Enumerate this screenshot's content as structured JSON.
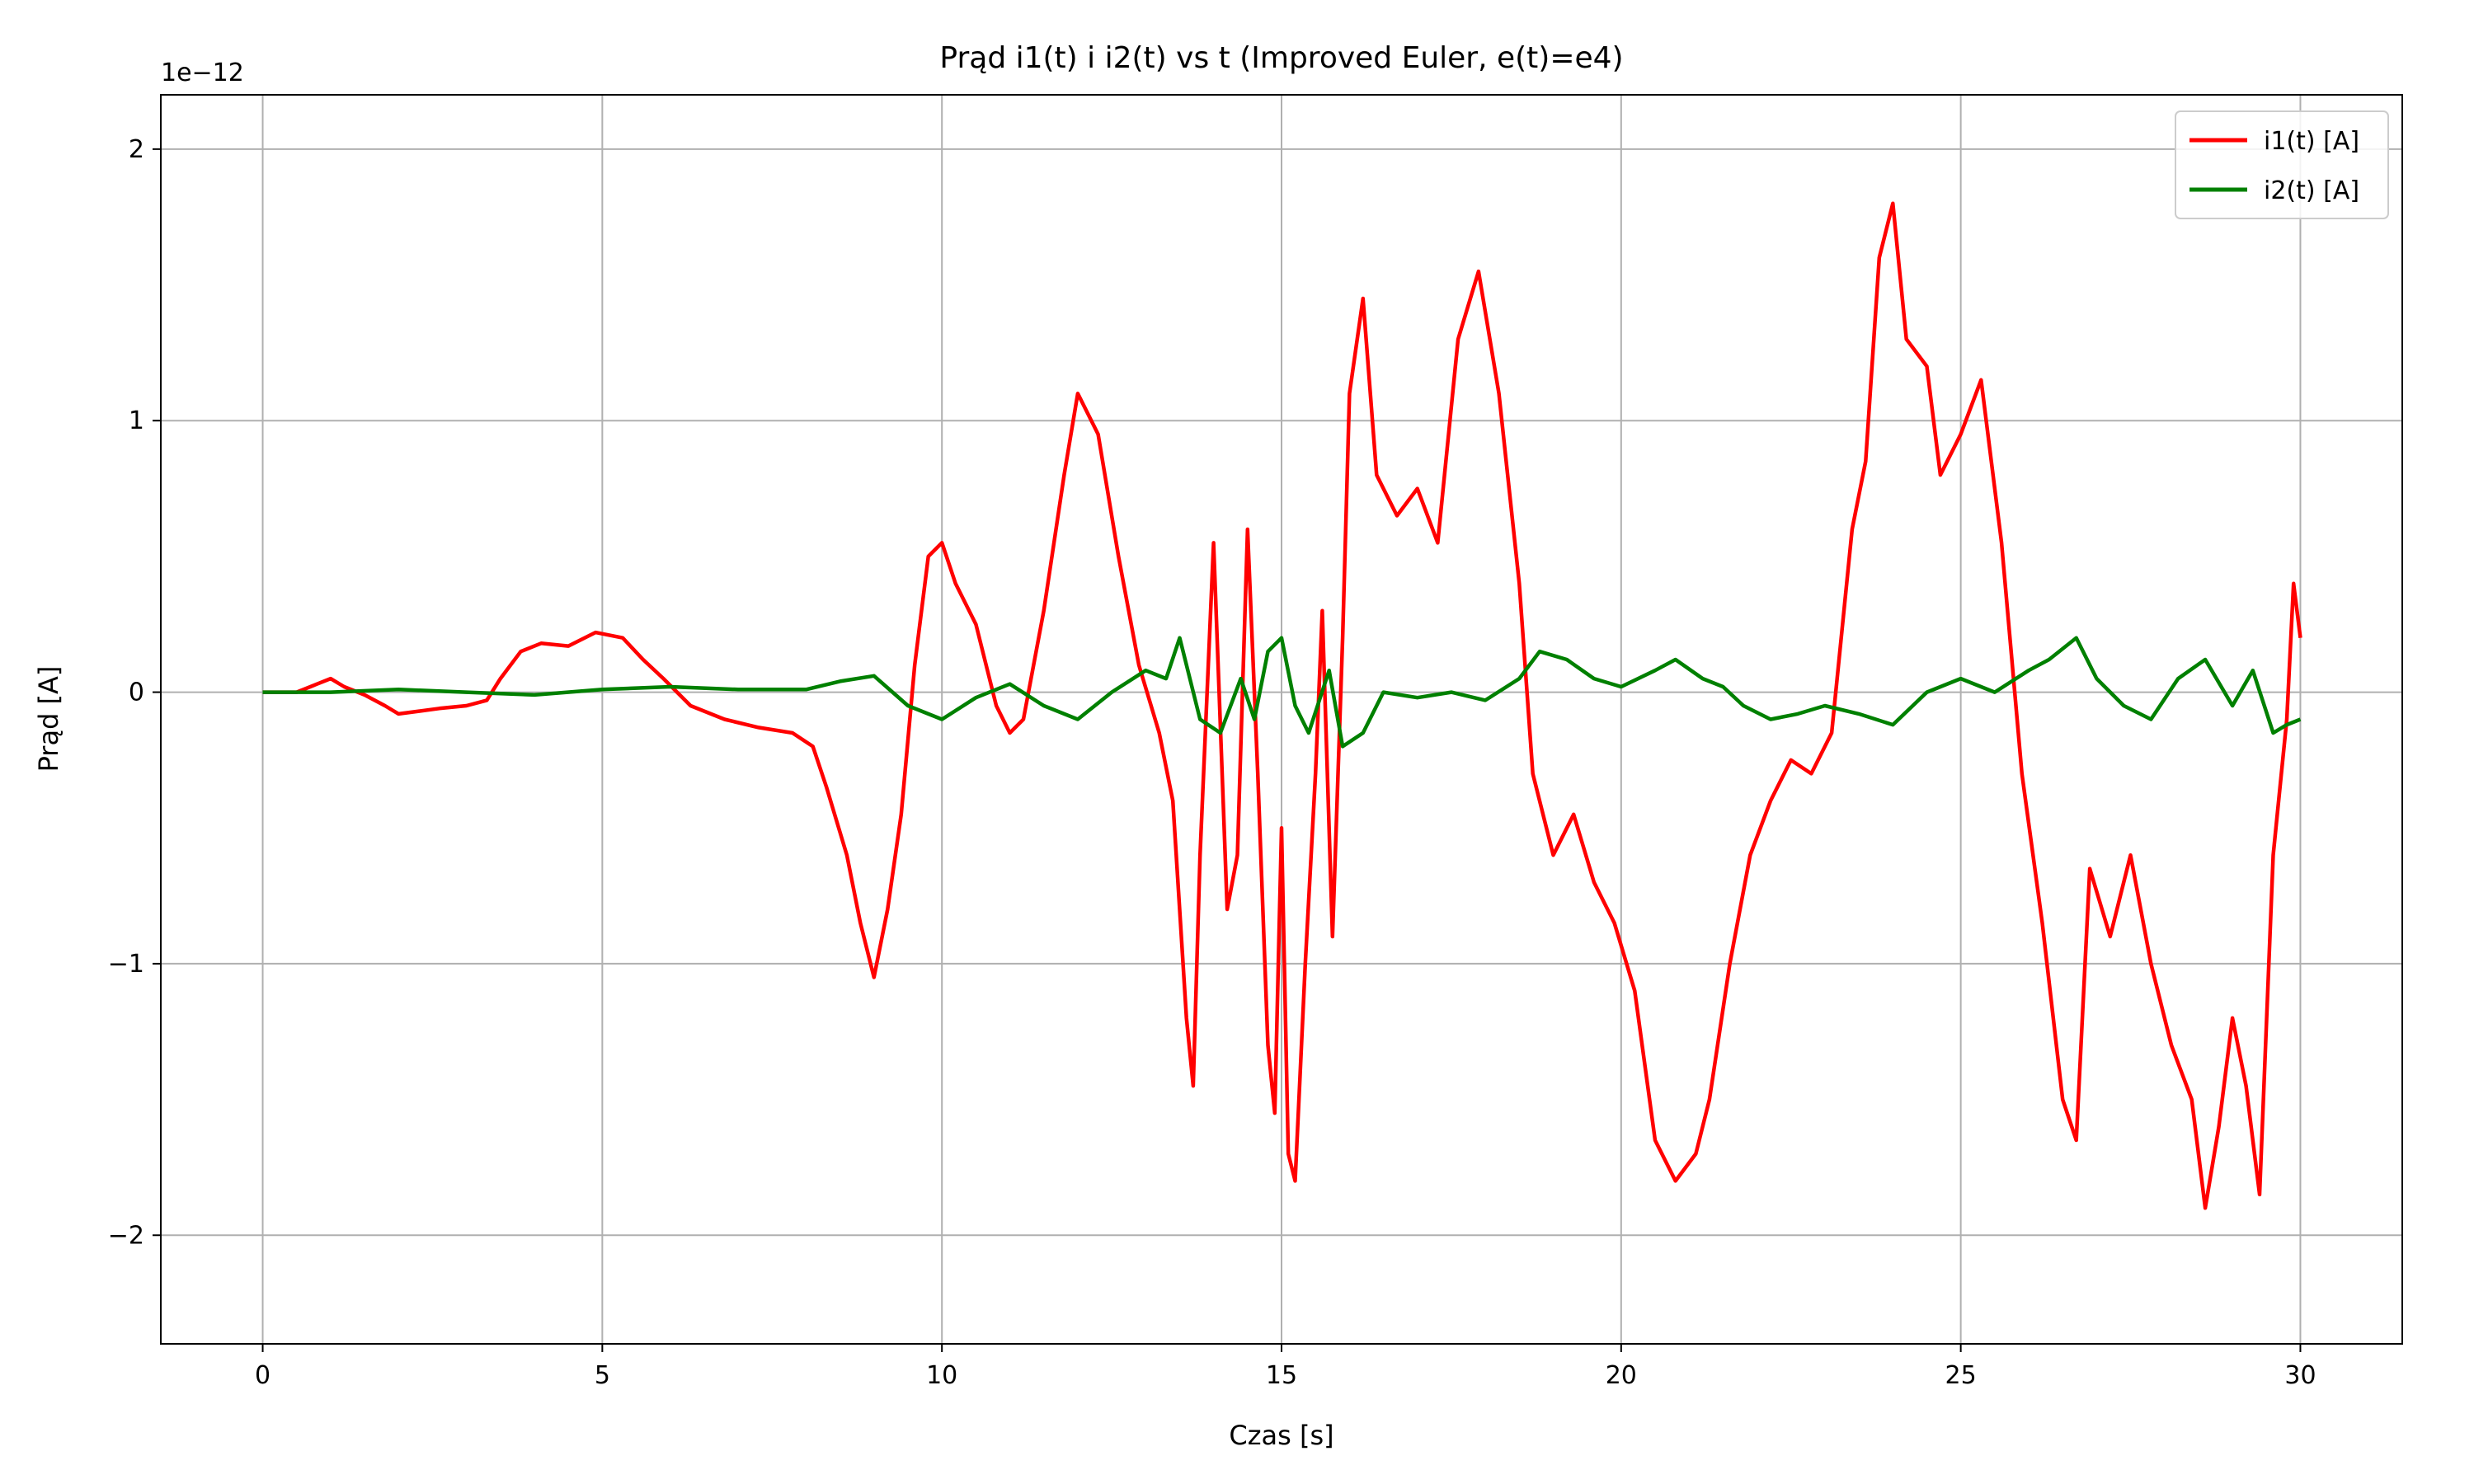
{
  "chart_data": {
    "type": "line",
    "title": "Prąd i1(t) i i2(t) vs t (Improved Euler, e(t)=e4)",
    "xlabel": "Czas [s]",
    "ylabel": "Prąd [A]",
    "y_scale_label": "1e−12",
    "y_scale_factor": 1e-12,
    "xlim": [
      -1.5,
      31.5
    ],
    "ylim": [
      -2.4,
      2.2
    ],
    "x_ticks": [
      0,
      5,
      10,
      15,
      20,
      25,
      30
    ],
    "x_tick_labels": [
      "0",
      "5",
      "10",
      "15",
      "20",
      "25",
      "30"
    ],
    "y_ticks": [
      -2,
      -1,
      0,
      1,
      2
    ],
    "y_tick_labels": [
      "−2",
      "−1",
      "0",
      "1",
      "2"
    ],
    "grid": true,
    "legend_position": "top-right",
    "series": [
      {
        "name": "i1(t) [A]",
        "color": "#ff0000",
        "points": [
          [
            0,
            0
          ],
          [
            0.5,
            0.0
          ],
          [
            0.8,
            0.03
          ],
          [
            1.0,
            0.05
          ],
          [
            1.2,
            0.02
          ],
          [
            1.5,
            -0.01
          ],
          [
            1.8,
            -0.05
          ],
          [
            2.0,
            -0.08
          ],
          [
            2.3,
            -0.07
          ],
          [
            2.6,
            -0.06
          ],
          [
            3.0,
            -0.05
          ],
          [
            3.3,
            -0.03
          ],
          [
            3.5,
            0.05
          ],
          [
            3.8,
            0.15
          ],
          [
            4.1,
            0.18
          ],
          [
            4.5,
            0.17
          ],
          [
            4.9,
            0.22
          ],
          [
            5.3,
            0.2
          ],
          [
            5.6,
            0.12
          ],
          [
            5.9,
            0.05
          ],
          [
            6.3,
            -0.05
          ],
          [
            6.8,
            -0.1
          ],
          [
            7.3,
            -0.13
          ],
          [
            7.8,
            -0.15
          ],
          [
            8.1,
            -0.2
          ],
          [
            8.3,
            -0.35
          ],
          [
            8.6,
            -0.6
          ],
          [
            8.8,
            -0.85
          ],
          [
            9.0,
            -1.05
          ],
          [
            9.2,
            -0.8
          ],
          [
            9.4,
            -0.45
          ],
          [
            9.6,
            0.1
          ],
          [
            9.8,
            0.5
          ],
          [
            10.0,
            0.55
          ],
          [
            10.2,
            0.4
          ],
          [
            10.5,
            0.25
          ],
          [
            10.8,
            -0.05
          ],
          [
            11.0,
            -0.15
          ],
          [
            11.2,
            -0.1
          ],
          [
            11.5,
            0.3
          ],
          [
            11.8,
            0.8
          ],
          [
            12.0,
            1.1
          ],
          [
            12.3,
            0.95
          ],
          [
            12.6,
            0.5
          ],
          [
            12.9,
            0.1
          ],
          [
            13.2,
            -0.15
          ],
          [
            13.4,
            -0.4
          ],
          [
            13.6,
            -1.2
          ],
          [
            13.7,
            -1.45
          ],
          [
            13.8,
            -0.6
          ],
          [
            14.0,
            0.55
          ],
          [
            14.2,
            -0.8
          ],
          [
            14.35,
            -0.6
          ],
          [
            14.5,
            0.6
          ],
          [
            14.65,
            -0.3
          ],
          [
            14.8,
            -1.3
          ],
          [
            14.9,
            -1.55
          ],
          [
            15.0,
            -0.5
          ],
          [
            15.1,
            -1.7
          ],
          [
            15.2,
            -1.8
          ],
          [
            15.35,
            -1.0
          ],
          [
            15.5,
            -0.3
          ],
          [
            15.6,
            0.3
          ],
          [
            15.75,
            -0.9
          ],
          [
            15.9,
            0.2
          ],
          [
            16.0,
            1.1
          ],
          [
            16.2,
            1.45
          ],
          [
            16.4,
            0.8
          ],
          [
            16.7,
            0.65
          ],
          [
            17.0,
            0.75
          ],
          [
            17.3,
            0.55
          ],
          [
            17.6,
            1.3
          ],
          [
            17.9,
            1.55
          ],
          [
            18.2,
            1.1
          ],
          [
            18.5,
            0.4
          ],
          [
            18.7,
            -0.3
          ],
          [
            19.0,
            -0.6
          ],
          [
            19.3,
            -0.45
          ],
          [
            19.6,
            -0.7
          ],
          [
            19.9,
            -0.85
          ],
          [
            20.2,
            -1.1
          ],
          [
            20.5,
            -1.65
          ],
          [
            20.8,
            -1.8
          ],
          [
            21.1,
            -1.7
          ],
          [
            21.3,
            -1.5
          ],
          [
            21.6,
            -1.0
          ],
          [
            21.9,
            -0.6
          ],
          [
            22.2,
            -0.4
          ],
          [
            22.5,
            -0.25
          ],
          [
            22.8,
            -0.3
          ],
          [
            23.1,
            -0.15
          ],
          [
            23.4,
            0.6
          ],
          [
            23.6,
            0.85
          ],
          [
            23.8,
            1.6
          ],
          [
            24.0,
            1.8
          ],
          [
            24.2,
            1.3
          ],
          [
            24.5,
            1.2
          ],
          [
            24.7,
            0.8
          ],
          [
            25.0,
            0.95
          ],
          [
            25.3,
            1.15
          ],
          [
            25.6,
            0.55
          ],
          [
            25.9,
            -0.3
          ],
          [
            26.2,
            -0.85
          ],
          [
            26.5,
            -1.5
          ],
          [
            26.7,
            -1.65
          ],
          [
            26.9,
            -0.65
          ],
          [
            27.2,
            -0.9
          ],
          [
            27.5,
            -0.6
          ],
          [
            27.8,
            -1.0
          ],
          [
            28.1,
            -1.3
          ],
          [
            28.4,
            -1.5
          ],
          [
            28.6,
            -1.9
          ],
          [
            28.8,
            -1.6
          ],
          [
            29.0,
            -1.2
          ],
          [
            29.2,
            -1.45
          ],
          [
            29.4,
            -1.85
          ],
          [
            29.6,
            -0.6
          ],
          [
            29.8,
            -0.1
          ],
          [
            29.9,
            0.4
          ],
          [
            30.0,
            0.2
          ]
        ]
      },
      {
        "name": "i2(t) [A]",
        "color": "#008000",
        "points": [
          [
            0,
            0
          ],
          [
            1.0,
            0.0
          ],
          [
            2.0,
            0.01
          ],
          [
            3.0,
            0.0
          ],
          [
            4.0,
            -0.01
          ],
          [
            5.0,
            0.01
          ],
          [
            6.0,
            0.02
          ],
          [
            7.0,
            0.01
          ],
          [
            8.0,
            0.01
          ],
          [
            8.5,
            0.04
          ],
          [
            9.0,
            0.06
          ],
          [
            9.5,
            -0.05
          ],
          [
            10.0,
            -0.1
          ],
          [
            10.5,
            -0.02
          ],
          [
            11.0,
            0.03
          ],
          [
            11.5,
            -0.05
          ],
          [
            12.0,
            -0.1
          ],
          [
            12.5,
            0.0
          ],
          [
            13.0,
            0.08
          ],
          [
            13.3,
            0.05
          ],
          [
            13.5,
            0.2
          ],
          [
            13.8,
            -0.1
          ],
          [
            14.1,
            -0.15
          ],
          [
            14.4,
            0.05
          ],
          [
            14.6,
            -0.1
          ],
          [
            14.8,
            0.15
          ],
          [
            15.0,
            0.2
          ],
          [
            15.2,
            -0.05
          ],
          [
            15.4,
            -0.15
          ],
          [
            15.7,
            0.08
          ],
          [
            15.9,
            -0.2
          ],
          [
            16.2,
            -0.15
          ],
          [
            16.5,
            0.0
          ],
          [
            17.0,
            -0.02
          ],
          [
            17.5,
            0.0
          ],
          [
            18.0,
            -0.03
          ],
          [
            18.5,
            0.05
          ],
          [
            18.8,
            0.15
          ],
          [
            19.2,
            0.12
          ],
          [
            19.6,
            0.05
          ],
          [
            20.0,
            0.02
          ],
          [
            20.5,
            0.08
          ],
          [
            20.8,
            0.12
          ],
          [
            21.2,
            0.05
          ],
          [
            21.5,
            0.02
          ],
          [
            21.8,
            -0.05
          ],
          [
            22.2,
            -0.1
          ],
          [
            22.6,
            -0.08
          ],
          [
            23.0,
            -0.05
          ],
          [
            23.5,
            -0.08
          ],
          [
            24.0,
            -0.12
          ],
          [
            24.5,
            0.0
          ],
          [
            25.0,
            0.05
          ],
          [
            25.5,
            0.0
          ],
          [
            26.0,
            0.08
          ],
          [
            26.3,
            0.12
          ],
          [
            26.7,
            0.2
          ],
          [
            27.0,
            0.05
          ],
          [
            27.4,
            -0.05
          ],
          [
            27.8,
            -0.1
          ],
          [
            28.2,
            0.05
          ],
          [
            28.6,
            0.12
          ],
          [
            29.0,
            -0.05
          ],
          [
            29.3,
            0.08
          ],
          [
            29.6,
            -0.15
          ],
          [
            29.8,
            -0.12
          ],
          [
            30.0,
            -0.1
          ]
        ]
      }
    ]
  }
}
